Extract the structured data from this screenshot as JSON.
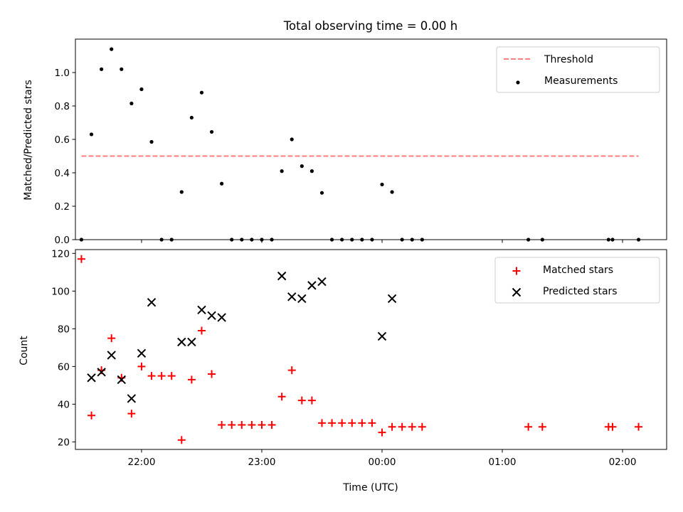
{
  "title": "Total observing time = 0.00 h",
  "colors": {
    "threshold": "#ff7f7f",
    "measurements": "#000000",
    "matched": "#ff0000",
    "predicted": "#000000"
  },
  "chart_data": [
    {
      "type": "scatter",
      "ylabel": "Matched/Predicted stars",
      "xlabel": "",
      "x_axis": "time",
      "xlim": [
        "21:27",
        "02:22"
      ],
      "ylim": [
        0,
        1.2
      ],
      "yticks": [
        0.0,
        0.2,
        0.4,
        0.6,
        0.8,
        1.0
      ],
      "ytick_labels": [
        "0.0",
        "0.2",
        "0.4",
        "0.6",
        "0.8",
        "1.0"
      ],
      "xticks": [
        "22:00",
        "23:00",
        "00:00",
        "01:00",
        "02:00"
      ],
      "xtick_labels_shown": false,
      "legend_position": "top-right",
      "series": [
        {
          "name": "Threshold",
          "kind": "line",
          "style": "dashed",
          "x": [
            "21:30",
            "02:08"
          ],
          "y": [
            0.5,
            0.5
          ]
        },
        {
          "name": "Measurements",
          "kind": "points",
          "x": [
            "21:30",
            "21:35",
            "21:40",
            "21:45",
            "21:50",
            "21:55",
            "22:00",
            "22:05",
            "22:10",
            "22:15",
            "22:20",
            "22:25",
            "22:30",
            "22:35",
            "22:40",
            "22:45",
            "22:50",
            "22:55",
            "23:00",
            "23:05",
            "23:10",
            "23:15",
            "23:20",
            "23:25",
            "23:30",
            "23:35",
            "23:40",
            "23:45",
            "23:50",
            "23:55",
            "00:00",
            "00:05",
            "00:10",
            "00:15",
            "00:20",
            "01:13",
            "01:20",
            "01:53",
            "01:55",
            "02:08"
          ],
          "y": [
            0,
            0.63,
            1.02,
            1.14,
            1.02,
            0.815,
            0.9,
            0.585,
            0,
            0,
            0.285,
            0.73,
            0.88,
            0.645,
            0.335,
            0,
            0,
            0,
            0,
            0,
            0.41,
            0.6,
            0.44,
            0.41,
            0.28,
            0,
            0,
            0,
            0,
            0,
            0.33,
            0.285,
            0,
            0,
            0,
            0,
            0,
            0,
            0,
            0
          ]
        }
      ]
    },
    {
      "type": "scatter",
      "ylabel": "Count",
      "xlabel": "Time (UTC)",
      "x_axis": "time",
      "xlim": [
        "21:27",
        "02:22"
      ],
      "ylim": [
        16,
        122
      ],
      "yticks": [
        20,
        40,
        60,
        80,
        100,
        120
      ],
      "ytick_labels": [
        "20",
        "40",
        "60",
        "80",
        "100",
        "120"
      ],
      "xticks": [
        "22:00",
        "23:00",
        "00:00",
        "01:00",
        "02:00"
      ],
      "xtick_labels": [
        "22:00",
        "23:00",
        "00:00",
        "01:00",
        "02:00"
      ],
      "legend_position": "top-right",
      "series": [
        {
          "name": "Matched stars",
          "kind": "plus",
          "x": [
            "21:30",
            "21:35",
            "21:40",
            "21:45",
            "21:50",
            "21:55",
            "22:00",
            "22:05",
            "22:10",
            "22:15",
            "22:20",
            "22:25",
            "22:30",
            "22:35",
            "22:40",
            "22:45",
            "22:50",
            "22:55",
            "23:00",
            "23:05",
            "23:10",
            "23:15",
            "23:20",
            "23:25",
            "23:30",
            "23:35",
            "23:40",
            "23:45",
            "23:50",
            "23:55",
            "00:00",
            "00:05",
            "00:10",
            "00:15",
            "00:20",
            "01:13",
            "01:20",
            "01:53",
            "01:55",
            "02:08"
          ],
          "y": [
            117,
            34,
            58,
            75,
            54,
            35,
            60,
            55,
            55,
            55,
            21,
            53,
            79,
            56,
            29,
            29,
            29,
            29,
            29,
            29,
            44,
            58,
            42,
            42,
            30,
            30,
            30,
            30,
            30,
            30,
            25,
            28,
            28,
            28,
            28,
            28,
            28,
            28,
            28,
            28
          ]
        },
        {
          "name": "Predicted stars",
          "kind": "cross",
          "x": [
            "21:35",
            "21:40",
            "21:45",
            "21:50",
            "21:55",
            "22:00",
            "22:05",
            "22:20",
            "22:25",
            "22:30",
            "22:35",
            "22:40",
            "23:10",
            "23:15",
            "23:20",
            "23:25",
            "23:30",
            "00:00",
            "00:05"
          ],
          "y": [
            54,
            57,
            66,
            53,
            43,
            67,
            94,
            73,
            73,
            90,
            87,
            86,
            108,
            97,
            96,
            103,
            105,
            76,
            96
          ]
        }
      ]
    }
  ]
}
